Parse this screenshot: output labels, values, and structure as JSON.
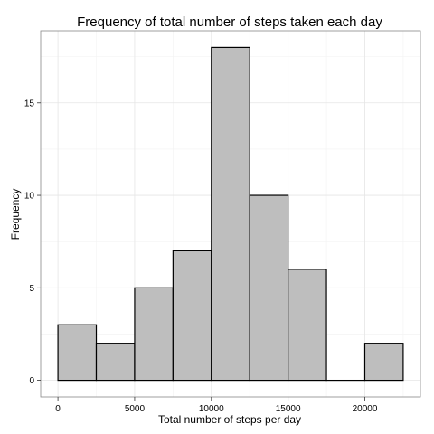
{
  "chart_data": {
    "type": "bar",
    "title": "Frequency of total number of steps taken each day",
    "xlabel": "Total number of steps per day",
    "ylabel": "Frequency",
    "bin_width": 2500,
    "bins": [
      {
        "start": 0,
        "end": 2500,
        "count": 3
      },
      {
        "start": 2500,
        "end": 5000,
        "count": 2
      },
      {
        "start": 5000,
        "end": 7500,
        "count": 5
      },
      {
        "start": 7500,
        "end": 10000,
        "count": 7
      },
      {
        "start": 10000,
        "end": 12500,
        "count": 18
      },
      {
        "start": 12500,
        "end": 15000,
        "count": 10
      },
      {
        "start": 15000,
        "end": 17500,
        "count": 6
      },
      {
        "start": 17500,
        "end": 20000,
        "count": 0
      },
      {
        "start": 20000,
        "end": 22500,
        "count": 2
      }
    ],
    "xlim": [
      -1125,
      23625
    ],
    "ylim": [
      -0.9,
      18.9
    ],
    "x_ticks": [
      0,
      5000,
      10000,
      15000,
      20000
    ],
    "x_tick_labels": [
      "0",
      "5000",
      "10000",
      "15000",
      "20000"
    ],
    "y_ticks": [
      0,
      5,
      10,
      15
    ],
    "y_tick_labels": [
      "0",
      "5",
      "10",
      "15"
    ],
    "grid": true,
    "colors": {
      "bar_fill": "#bebebe",
      "bar_stroke": "#000000",
      "grid": "#e5e5e5"
    }
  }
}
